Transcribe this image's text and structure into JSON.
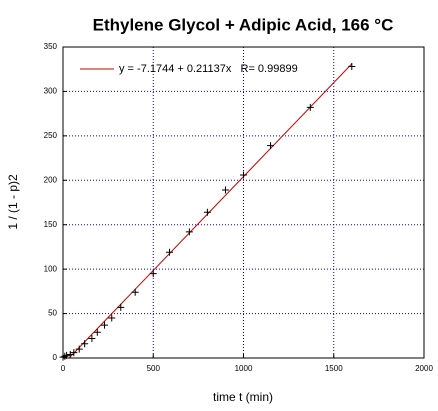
{
  "chart_data": {
    "type": "scatter",
    "title": "Ethylene Glycol + Adipic Acid, 166 °C",
    "x_label": "time t (min)",
    "y_label": "1 / (1 - p)2",
    "x": [
      0,
      10,
      20,
      40,
      60,
      90,
      120,
      160,
      190,
      230,
      270,
      320,
      400,
      500,
      590,
      700,
      800,
      900,
      1000,
      1150,
      1370,
      1600
    ],
    "values": [
      1,
      2,
      3,
      4,
      6,
      10,
      16,
      22,
      29,
      37,
      45,
      57,
      74,
      95,
      119,
      142,
      164,
      189,
      206,
      239,
      282,
      328
    ],
    "color": "#000000",
    "fit": {
      "name": "y = -7.1744 + 0.21137x   R= 0.99899",
      "color": "#cc0000",
      "x": [
        34,
        1600
      ],
      "values": [
        0,
        331
      ]
    },
    "xlim": [
      0,
      2000
    ],
    "xticks": [
      0,
      500,
      1000,
      1500,
      2000
    ],
    "ylim": [
      0,
      350
    ],
    "yticks": [
      0,
      50,
      100,
      150,
      200,
      250,
      300,
      350
    ],
    "grid": true,
    "grid_color": "#0000cc",
    "legend": "upper left"
  }
}
